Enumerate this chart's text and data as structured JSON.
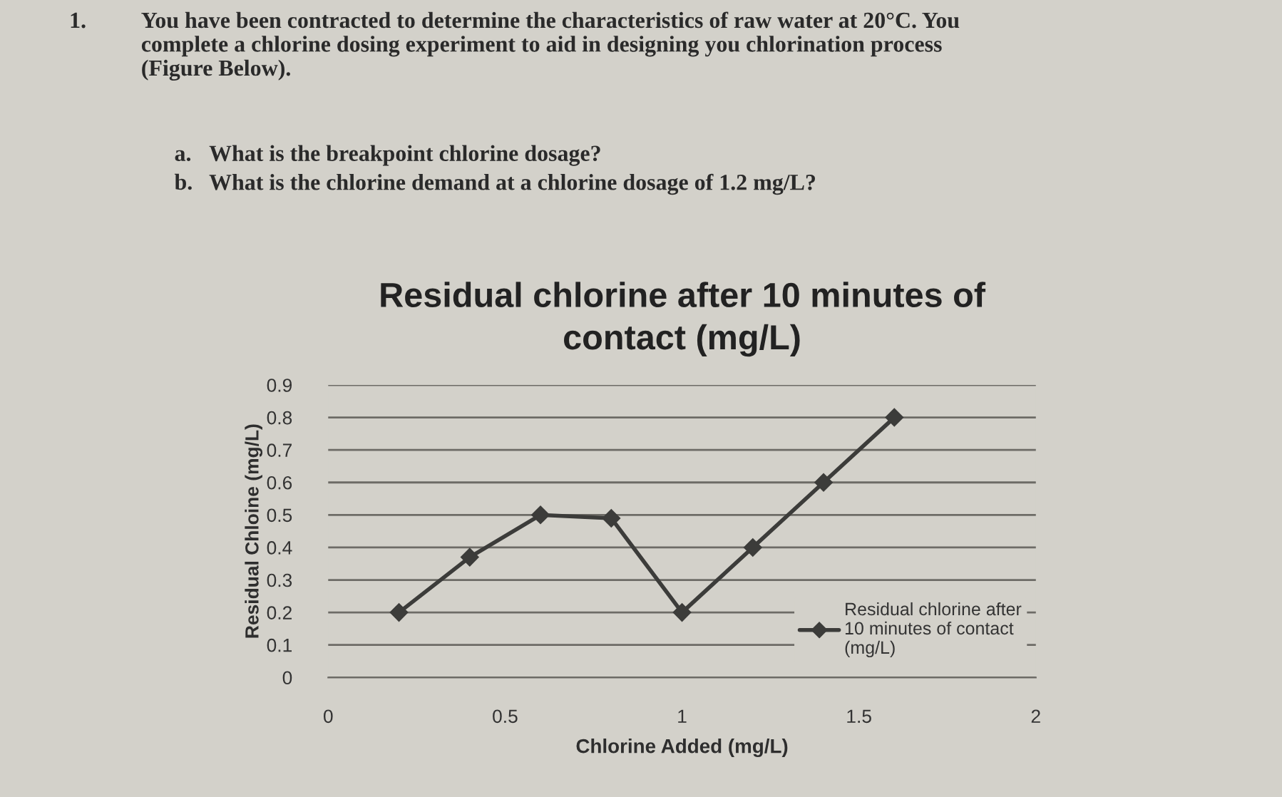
{
  "chart_data": {
    "type": "line",
    "title": "Residual chlorine after 10 minutes of\ncontact (mg/L)",
    "xlabel": "Chlorine Added (mg/L)",
    "ylabel": "Residual Chloine (mg/L)",
    "x": [
      0.2,
      0.4,
      0.6,
      0.8,
      1.0,
      1.2,
      1.4,
      1.6
    ],
    "series": [
      {
        "name": "Residual chlorine after\n10 minutes of contact\n(mg/L)",
        "color": "#3c3c3a",
        "values": [
          0.2,
          0.37,
          0.5,
          0.49,
          0.2,
          0.4,
          0.6,
          0.8
        ]
      }
    ],
    "xlim": [
      0,
      2
    ],
    "xticks": [
      0,
      0.5,
      1,
      1.5,
      2
    ],
    "ylim": [
      0,
      0.9
    ],
    "yticks": [
      0,
      0.1,
      0.2,
      0.3,
      0.4,
      0.5,
      0.6,
      0.7,
      0.8,
      0.9
    ],
    "grid": "y",
    "legend": "bottom right",
    "marker": "diamond",
    "line_style": "solid",
    "annotations": [
      "1.",
      "You have been contracted to determine the characteristics of raw water at 20°C. You\ncomplete a chlorine dosing experiment to aid in designing you chlorination process\n(Figure Below).",
      "a.",
      "What is the breakpoint chlorine dosage?",
      "b.",
      "What is the chlorine demand at a chlorine dosage of 1.2 mg/L?"
    ]
  }
}
